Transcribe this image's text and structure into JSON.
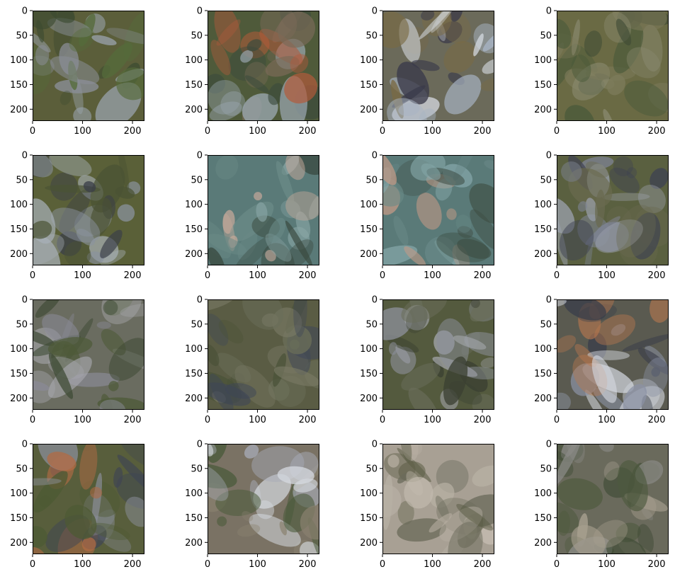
{
  "chart_data": {
    "type": "image_grid",
    "rows": 4,
    "cols": 4,
    "image_extent": [
      0,
      224
    ],
    "xticks": [
      0,
      100,
      200
    ],
    "yticks": [
      0,
      50,
      100,
      150,
      200
    ],
    "xtick_labels": [
      "0",
      "100",
      "200"
    ],
    "ytick_labels": [
      "0",
      "50",
      "100",
      "150",
      "200"
    ],
    "grid": false,
    "legend": "none",
    "panels": [
      {
        "base": "#5b5e3a",
        "accents": [
          "#9aa3ad",
          "#3b4a30",
          "#8a8f98",
          "#556b3a"
        ]
      },
      {
        "base": "#4f5a3a",
        "accents": [
          "#7a6a58",
          "#9aa6b0",
          "#b35a3a",
          "#3a4a3c"
        ]
      },
      {
        "base": "#6b6a5a",
        "accents": [
          "#a8b4c4",
          "#3a3a4a",
          "#d6dbe2",
          "#7a6a44"
        ]
      },
      {
        "base": "#6a6a44",
        "accents": [
          "#4a5a3a",
          "#8a8a70",
          "#3e4a34",
          "#7c7a5a"
        ]
      },
      {
        "base": "#5a6038",
        "accents": [
          "#8a929e",
          "#3a3e48",
          "#a8b0b8",
          "#4a5234"
        ]
      },
      {
        "base": "#5a7a78",
        "accents": [
          "#8aa6a6",
          "#c4a89a",
          "#3a4a40",
          "#6a8a86"
        ]
      },
      {
        "base": "#5a7a78",
        "accents": [
          "#86a8aa",
          "#c49a86",
          "#3e4e44",
          "#6a8a88"
        ]
      },
      {
        "base": "#5a6040",
        "accents": [
          "#7c8290",
          "#3e4252",
          "#9aa0aa",
          "#6a6a50"
        ]
      },
      {
        "base": "#6a6c60",
        "accents": [
          "#8a8a96",
          "#4e5a38",
          "#a8a8ae",
          "#3e4a34"
        ]
      },
      {
        "base": "#5a5c44",
        "accents": [
          "#3e4658",
          "#6a6e58",
          "#4a5238",
          "#7a7a66"
        ]
      },
      {
        "base": "#545a3e",
        "accents": [
          "#8c909a",
          "#3a4032",
          "#a6a8ae",
          "#6a6e5a"
        ]
      },
      {
        "base": "#5a5a50",
        "accents": [
          "#d4d8e0",
          "#3a3e4a",
          "#b8784e",
          "#8a92a4"
        ]
      },
      {
        "base": "#585e3c",
        "accents": [
          "#8a8e9a",
          "#3e4454",
          "#b06a44",
          "#4e5a34"
        ]
      },
      {
        "base": "#7a7264",
        "accents": [
          "#a8acb8",
          "#4a5a3a",
          "#d6dae0",
          "#8a8270"
        ]
      },
      {
        "base": "#a8a094",
        "accents": [
          "#5a5c44",
          "#c4bcb0",
          "#6a6a5a",
          "#b8b0a4"
        ]
      },
      {
        "base": "#6a6a5c",
        "accents": [
          "#3e4a34",
          "#8a8a86",
          "#a8a090",
          "#4e5a3e"
        ]
      }
    ]
  }
}
